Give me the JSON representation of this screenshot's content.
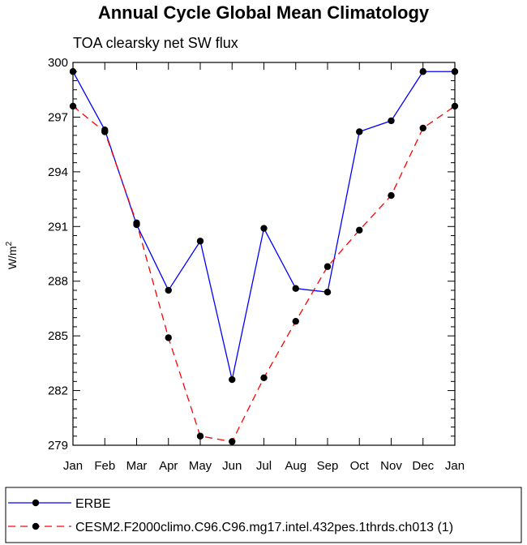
{
  "chart_data": {
    "type": "line",
    "title": "Annual Cycle Global Mean Climatology",
    "subtitle": "TOA clearsky net SW flux",
    "xlabel": "",
    "ylabel": "W/m",
    "ylabel_superscript": "2",
    "categories": [
      "Jan",
      "Feb",
      "Mar",
      "Apr",
      "May",
      "Jun",
      "Jul",
      "Aug",
      "Sep",
      "Oct",
      "Nov",
      "Dec",
      "Jan"
    ],
    "ylim": [
      279,
      300
    ],
    "yticks": [
      279,
      282,
      285,
      288,
      291,
      294,
      297,
      300
    ],
    "series": [
      {
        "name": "ERBE",
        "color": "#0000ff",
        "dash": "solid",
        "values": [
          299.5,
          296.3,
          291.1,
          287.5,
          290.2,
          282.6,
          290.9,
          287.6,
          287.4,
          296.2,
          296.8,
          299.5,
          299.5
        ]
      },
      {
        "name": "CESM2.F2000climo.C96.C96.mg17.intel.432pes.1thrds.ch013 (1)",
        "color": "#ff0000",
        "dash": "dashed",
        "values": [
          297.6,
          296.2,
          291.2,
          284.9,
          279.5,
          279.2,
          282.7,
          285.8,
          288.8,
          290.8,
          292.7,
          296.4,
          297.6
        ]
      }
    ],
    "grid": false,
    "legend_position": "bottom"
  }
}
